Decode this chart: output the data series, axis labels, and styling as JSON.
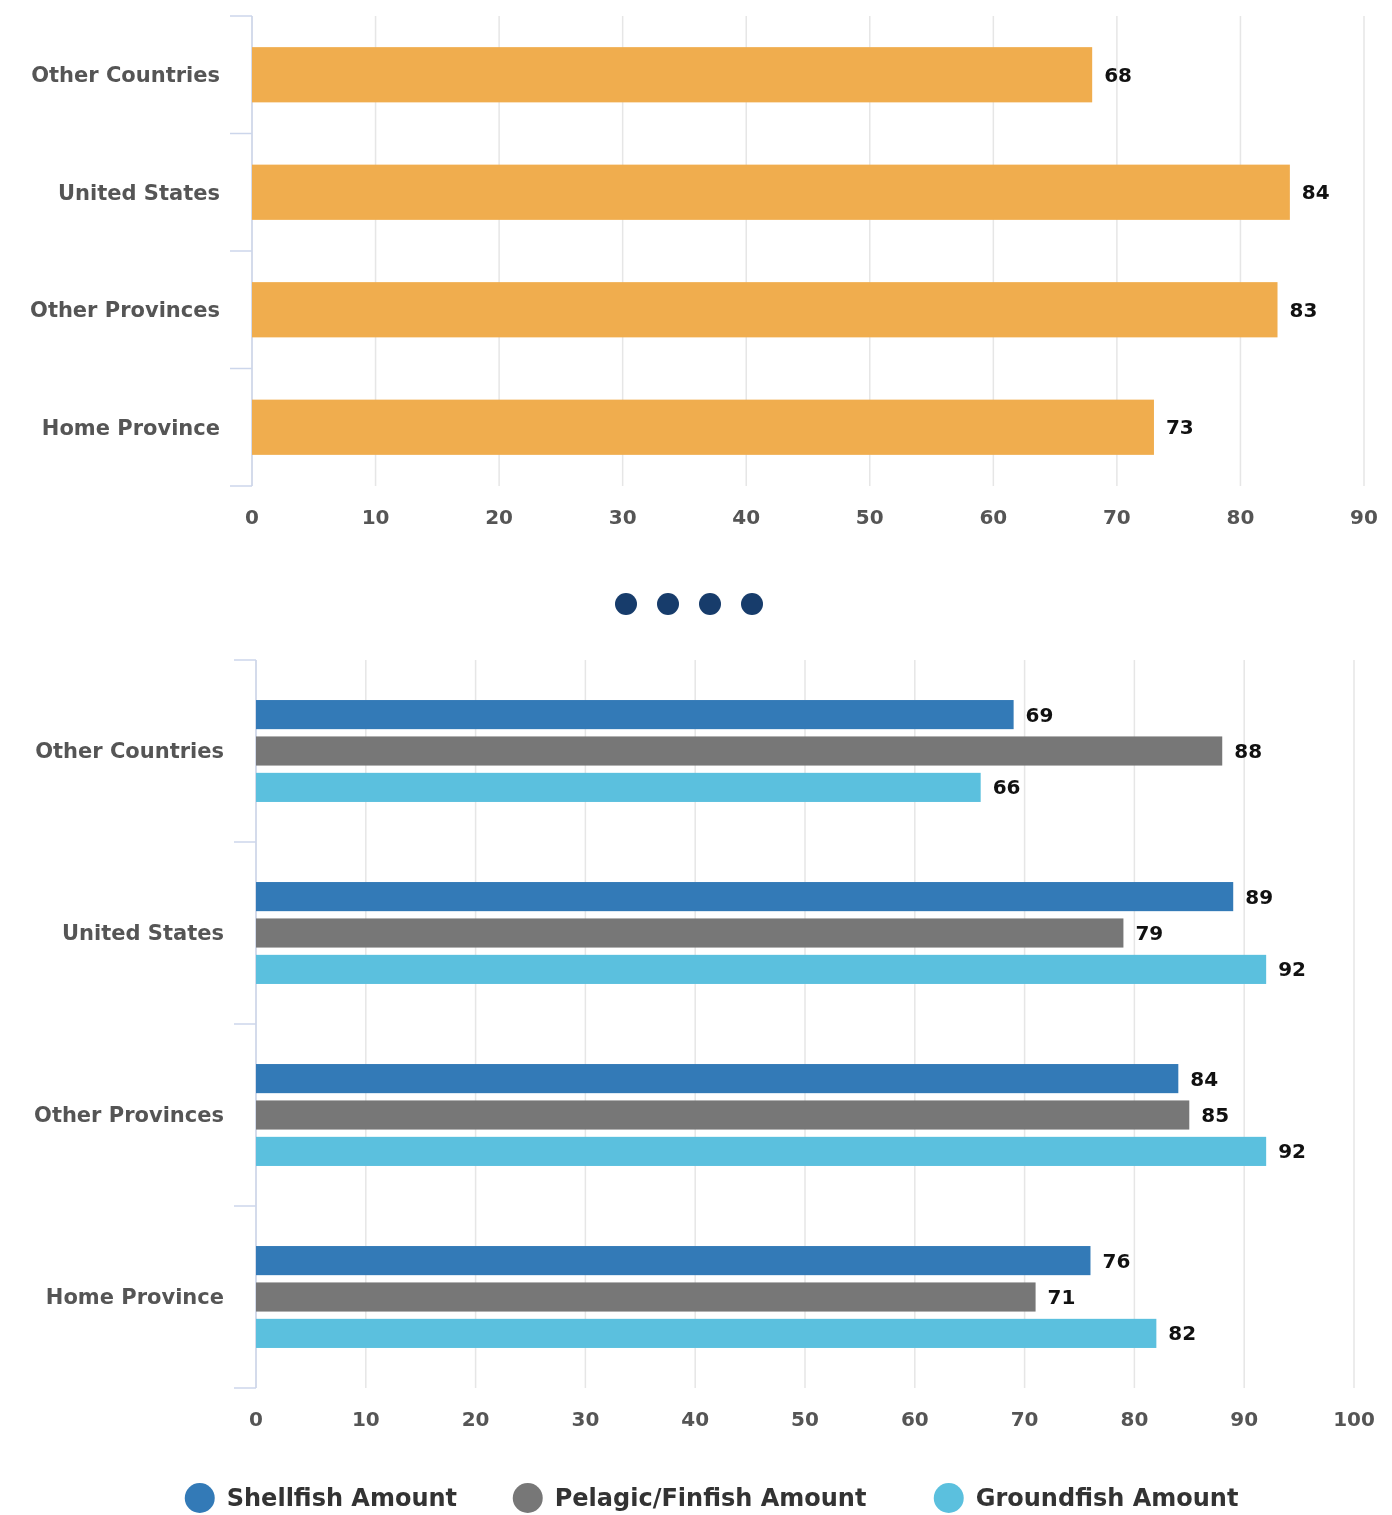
{
  "chart_data": [
    {
      "type": "bar",
      "orientation": "horizontal",
      "categories": [
        "Other Countries",
        "United States",
        "Other Provinces",
        "Home Province"
      ],
      "values": [
        68,
        84,
        83,
        73
      ],
      "color": "#f0ad4e",
      "xlim": [
        0,
        90
      ],
      "xticks": [
        0,
        10,
        20,
        30,
        40,
        50,
        60,
        70,
        80,
        90
      ],
      "grid": "x",
      "data_labels": true,
      "legend": false
    },
    {
      "type": "bar",
      "orientation": "horizontal",
      "categories": [
        "Other Countries",
        "United States",
        "Other Provinces",
        "Home Province"
      ],
      "series": [
        {
          "name": "Shellfish Amount",
          "color": "#337ab7",
          "values": [
            69,
            89,
            84,
            76
          ]
        },
        {
          "name": "Pelagic/Finfish Amount",
          "color": "#777777",
          "values": [
            88,
            79,
            85,
            71
          ]
        },
        {
          "name": "Groundfish Amount",
          "color": "#5bc0de",
          "values": [
            66,
            92,
            92,
            82
          ]
        }
      ],
      "xlim": [
        0,
        100
      ],
      "xticks": [
        0,
        10,
        20,
        30,
        40,
        50,
        60,
        70,
        80,
        90,
        100
      ],
      "grid": "x",
      "data_labels": true,
      "legend": "bottom"
    }
  ]
}
